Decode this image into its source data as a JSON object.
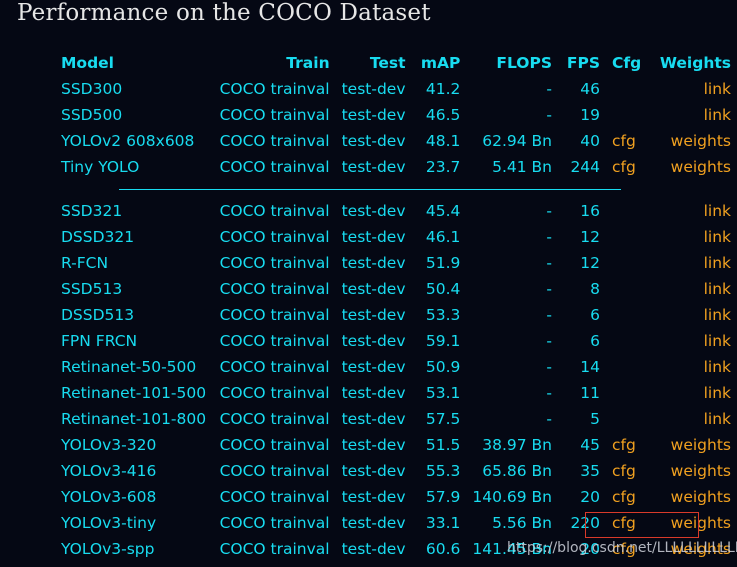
{
  "title": "Performance on the COCO Dataset",
  "headers": {
    "model": "Model",
    "train": "Train",
    "test": "Test",
    "map": "mAP",
    "flops": "FLOPS",
    "fps": "FPS",
    "cfg": "Cfg",
    "weights": "Weights"
  },
  "group1": [
    {
      "model": "SSD300",
      "train": "COCO trainval",
      "test": "test-dev",
      "map": "41.2",
      "flops": "-",
      "fps": "46",
      "cfg": "",
      "weights": "link"
    },
    {
      "model": "SSD500",
      "train": "COCO trainval",
      "test": "test-dev",
      "map": "46.5",
      "flops": "-",
      "fps": "19",
      "cfg": "",
      "weights": "link"
    },
    {
      "model": "YOLOv2 608x608",
      "train": "COCO trainval",
      "test": "test-dev",
      "map": "48.1",
      "flops": "62.94 Bn",
      "fps": "40",
      "cfg": "cfg",
      "weights": "weights"
    },
    {
      "model": "Tiny YOLO",
      "train": "COCO trainval",
      "test": "test-dev",
      "map": "23.7",
      "flops": "5.41 Bn",
      "fps": "244",
      "cfg": "cfg",
      "weights": "weights"
    }
  ],
  "group2": [
    {
      "model": "SSD321",
      "train": "COCO trainval",
      "test": "test-dev",
      "map": "45.4",
      "flops": "-",
      "fps": "16",
      "cfg": "",
      "weights": "link"
    },
    {
      "model": "DSSD321",
      "train": "COCO trainval",
      "test": "test-dev",
      "map": "46.1",
      "flops": "-",
      "fps": "12",
      "cfg": "",
      "weights": "link"
    },
    {
      "model": "R-FCN",
      "train": "COCO trainval",
      "test": "test-dev",
      "map": "51.9",
      "flops": "-",
      "fps": "12",
      "cfg": "",
      "weights": "link"
    },
    {
      "model": "SSD513",
      "train": "COCO trainval",
      "test": "test-dev",
      "map": "50.4",
      "flops": "-",
      "fps": "8",
      "cfg": "",
      "weights": "link"
    },
    {
      "model": "DSSD513",
      "train": "COCO trainval",
      "test": "test-dev",
      "map": "53.3",
      "flops": "-",
      "fps": "6",
      "cfg": "",
      "weights": "link"
    },
    {
      "model": "FPN FRCN",
      "train": "COCO trainval",
      "test": "test-dev",
      "map": "59.1",
      "flops": "-",
      "fps": "6",
      "cfg": "",
      "weights": "link"
    },
    {
      "model": "Retinanet-50-500",
      "train": "COCO trainval",
      "test": "test-dev",
      "map": "50.9",
      "flops": "-",
      "fps": "14",
      "cfg": "",
      "weights": "link"
    },
    {
      "model": "Retinanet-101-500",
      "train": "COCO trainval",
      "test": "test-dev",
      "map": "53.1",
      "flops": "-",
      "fps": "11",
      "cfg": "",
      "weights": "link"
    },
    {
      "model": "Retinanet-101-800",
      "train": "COCO trainval",
      "test": "test-dev",
      "map": "57.5",
      "flops": "-",
      "fps": "5",
      "cfg": "",
      "weights": "link"
    },
    {
      "model": "YOLOv3-320",
      "train": "COCO trainval",
      "test": "test-dev",
      "map": "51.5",
      "flops": "38.97 Bn",
      "fps": "45",
      "cfg": "cfg",
      "weights": "weights"
    },
    {
      "model": "YOLOv3-416",
      "train": "COCO trainval",
      "test": "test-dev",
      "map": "55.3",
      "flops": "65.86 Bn",
      "fps": "35",
      "cfg": "cfg",
      "weights": "weights"
    },
    {
      "model": "YOLOv3-608",
      "train": "COCO trainval",
      "test": "test-dev",
      "map": "57.9",
      "flops": "140.69 Bn",
      "fps": "20",
      "cfg": "cfg",
      "weights": "weights"
    },
    {
      "model": "YOLOv3-tiny",
      "train": "COCO trainval",
      "test": "test-dev",
      "map": "33.1",
      "flops": "5.56 Bn",
      "fps": "220",
      "cfg": "cfg",
      "weights": "weights"
    },
    {
      "model": "YOLOv3-spp",
      "train": "COCO trainval",
      "test": "test-dev",
      "map": "60.6",
      "flops": "141.45 Bn",
      "fps": "20",
      "cfg": "cfg",
      "weights": "weights"
    }
  ],
  "watermark": "https://blog.csdn.net/LLLLLLLLLLL"
}
